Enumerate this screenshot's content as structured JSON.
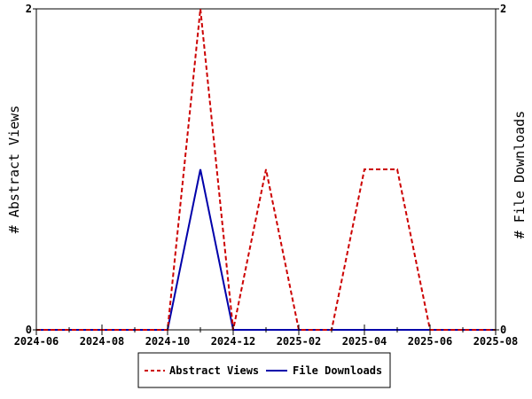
{
  "chart_data": {
    "type": "line",
    "x_ticks": [
      "2024-06",
      "2024-08",
      "2024-10",
      "2024-12",
      "2025-02",
      "2025-04",
      "2025-06",
      "2025-08"
    ],
    "x_range": [
      "2024-06",
      "2025-08"
    ],
    "ylabel_left": "# Abstract Views",
    "ylabel_right": "# File Downloads",
    "ylim_left": [
      0,
      2
    ],
    "ylim_right": [
      0,
      2
    ],
    "y_ticks_left": [
      "0",
      "2"
    ],
    "y_ticks_right": [
      "0",
      "2"
    ],
    "legend_position": "bottom",
    "series": [
      {
        "name": "Abstract Views",
        "axis": "left",
        "color": "#cc0000",
        "style": "dashed",
        "points": [
          [
            "2024-06",
            0
          ],
          [
            "2024-07",
            0
          ],
          [
            "2024-08",
            0
          ],
          [
            "2024-09",
            0
          ],
          [
            "2024-10",
            0
          ],
          [
            "2024-11",
            2
          ],
          [
            "2024-12",
            0
          ],
          [
            "2025-01",
            1
          ],
          [
            "2025-02",
            0
          ],
          [
            "2025-03",
            0
          ],
          [
            "2025-04",
            1
          ],
          [
            "2025-05",
            1
          ],
          [
            "2025-06",
            0
          ],
          [
            "2025-07",
            0
          ],
          [
            "2025-08",
            0
          ]
        ]
      },
      {
        "name": "File Downloads",
        "axis": "right",
        "color": "#0000aa",
        "style": "solid",
        "points": [
          [
            "2024-06",
            0
          ],
          [
            "2024-07",
            0
          ],
          [
            "2024-08",
            0
          ],
          [
            "2024-09",
            0
          ],
          [
            "2024-10",
            0
          ],
          [
            "2024-11",
            1
          ],
          [
            "2024-12",
            0
          ],
          [
            "2025-01",
            0
          ],
          [
            "2025-02",
            0
          ],
          [
            "2025-03",
            0
          ],
          [
            "2025-04",
            0
          ],
          [
            "2025-05",
            0
          ],
          [
            "2025-06",
            0
          ],
          [
            "2025-07",
            0
          ],
          [
            "2025-08",
            0
          ]
        ]
      }
    ]
  }
}
